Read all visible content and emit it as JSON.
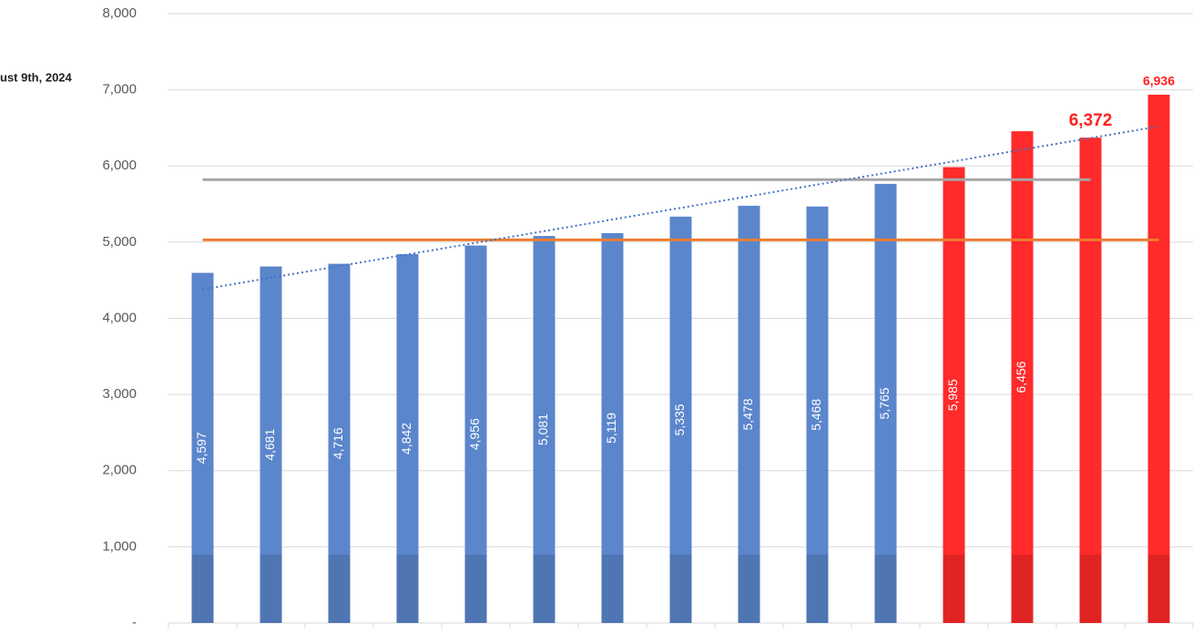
{
  "chart_data": {
    "type": "bar",
    "subtitle": "ust 9th, 2024",
    "values": [
      4597,
      4681,
      4716,
      4842,
      4956,
      5081,
      5119,
      5335,
      5478,
      5468,
      5765,
      5985,
      6456,
      6372,
      6936
    ],
    "value_labels": [
      "4,597",
      "4,681",
      "4,716",
      "4,842",
      "4,956",
      "5,081",
      "5,119",
      "5,335",
      "5,478",
      "5,468",
      "5,765",
      "5,985",
      "6,456",
      "6,372",
      "6,936"
    ],
    "label_position": [
      "inside",
      "inside",
      "inside",
      "inside",
      "inside",
      "inside",
      "inside",
      "inside",
      "inside",
      "inside",
      "inside",
      "inside",
      "inside",
      "above",
      "above"
    ],
    "colors": [
      "#5b86cc",
      "#5b86cc",
      "#5b86cc",
      "#5b86cc",
      "#5b86cc",
      "#5b86cc",
      "#5b86cc",
      "#5b86cc",
      "#5b86cc",
      "#5b86cc",
      "#5b86cc",
      "#ff2a2a",
      "#ff2a2a",
      "#ff2a2a",
      "#ff2a2a"
    ],
    "label_color": "#ff2020",
    "ylim": [
      0,
      8000
    ],
    "yticks": [
      {
        "value": 0,
        "label": "-"
      },
      {
        "value": 1000,
        "label": "1,000"
      },
      {
        "value": 2000,
        "label": "2,000"
      },
      {
        "value": 3000,
        "label": "3,000"
      },
      {
        "value": 4000,
        "label": "4,000"
      },
      {
        "value": 5000,
        "label": "5,000"
      },
      {
        "value": 6000,
        "label": "6,000"
      },
      {
        "value": 7000,
        "label": "7,000"
      },
      {
        "value": 8000,
        "label": "8,000"
      }
    ],
    "grid": true,
    "reference_lines": [
      {
        "value": 5820,
        "color": "#a6a6a6",
        "from": 0,
        "to": 13
      },
      {
        "value": 5030,
        "color": "#ed7d31",
        "from": 0,
        "to": 14
      }
    ],
    "trendline": {
      "start": 4380,
      "end": 6520,
      "color": "#4472c4"
    }
  }
}
